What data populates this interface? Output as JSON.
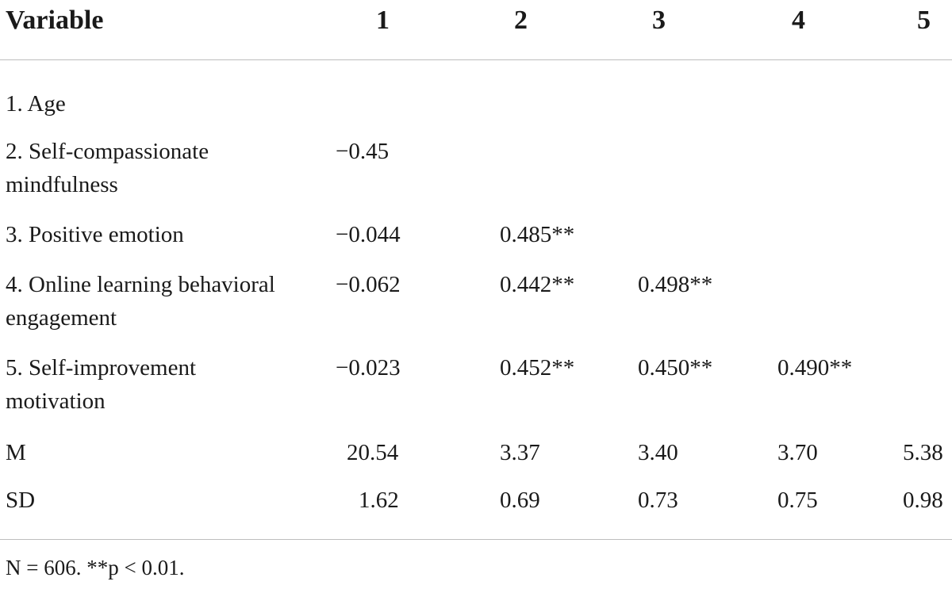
{
  "table": {
    "headers": [
      "Variable",
      "1",
      "2",
      "3",
      "4",
      "5"
    ],
    "rows": [
      {
        "label": "1. Age",
        "cells": [
          "",
          "",
          "",
          "",
          ""
        ]
      },
      {
        "label": "2. Self-compassionate mindfulness",
        "cells": [
          "−0.45",
          "",
          "",
          "",
          ""
        ]
      },
      {
        "label": "3. Positive emotion",
        "cells": [
          "−0.044",
          "0.485**",
          "",
          "",
          ""
        ]
      },
      {
        "label": "4. Online learning behavioral engagement",
        "cells": [
          "−0.062",
          "0.442**",
          "0.498**",
          "",
          ""
        ]
      },
      {
        "label": "5. Self-improvement motivation",
        "cells": [
          "−0.023",
          "0.452**",
          "0.450**",
          "0.490**",
          ""
        ]
      },
      {
        "label": "M",
        "cells": [
          "20.54",
          "3.37",
          "3.40",
          "3.70",
          "5.38"
        ]
      },
      {
        "label": "SD",
        "cells": [
          "1.62",
          "0.69",
          "0.73",
          "0.75",
          "0.98"
        ]
      }
    ]
  },
  "note": "N = 606. **p < 0.01."
}
